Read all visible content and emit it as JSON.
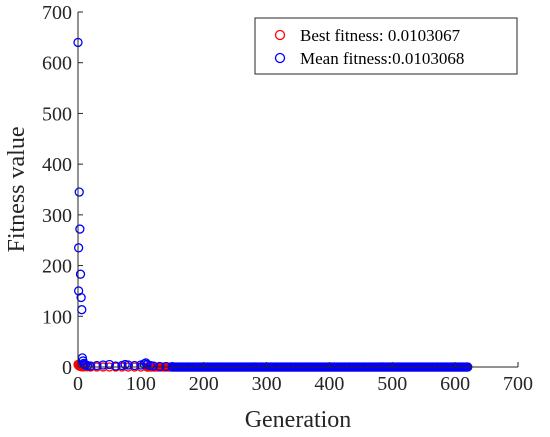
{
  "chart_data": {
    "type": "scatter",
    "xlabel": "Generation",
    "ylabel": "Fitness value",
    "xlim": [
      0,
      700
    ],
    "ylim": [
      0,
      700
    ],
    "xticks": [
      0,
      100,
      200,
      300,
      400,
      500,
      600,
      700
    ],
    "yticks": [
      0,
      100,
      200,
      300,
      400,
      500,
      600,
      700
    ],
    "grid": false,
    "legend_position": "top-right",
    "marker": "open-circle",
    "series": [
      {
        "name": "Best fitness:  0.0103067",
        "color": "#ff0000",
        "points": [
          [
            0,
            5
          ],
          [
            1,
            3
          ],
          [
            2,
            2
          ],
          [
            3,
            1.5
          ],
          [
            4,
            1
          ],
          [
            5,
            0.8
          ],
          [
            6,
            0.6
          ],
          [
            8,
            0.4
          ],
          [
            10,
            0.3
          ],
          [
            15,
            0.2
          ],
          [
            20,
            0.15
          ],
          [
            30,
            0.1
          ],
          [
            40,
            0.08
          ],
          [
            50,
            0.05
          ],
          [
            60,
            0.04
          ],
          [
            70,
            0.03
          ],
          [
            80,
            0.02
          ],
          [
            90,
            0.02
          ],
          [
            100,
            0.015
          ],
          [
            110,
            0.012
          ]
        ],
        "dense_tail": {
          "from": 110,
          "to": 620,
          "step": 2,
          "y": 0.0103067
        }
      },
      {
        "name": "Mean fitness:0.0103068",
        "color": "#0000ff",
        "points": [
          [
            0,
            640
          ],
          [
            1,
            235
          ],
          [
            1,
            150
          ],
          [
            2,
            345
          ],
          [
            3,
            272
          ],
          [
            4,
            183
          ],
          [
            5,
            137
          ],
          [
            6,
            113
          ],
          [
            7,
            18
          ],
          [
            8,
            12
          ],
          [
            9,
            7
          ],
          [
            10,
            5
          ],
          [
            12,
            4
          ],
          [
            15,
            3
          ],
          [
            20,
            2
          ],
          [
            30,
            3
          ],
          [
            40,
            4
          ],
          [
            50,
            5
          ],
          [
            60,
            2
          ],
          [
            70,
            3
          ],
          [
            75,
            5
          ],
          [
            80,
            4
          ],
          [
            90,
            3
          ],
          [
            100,
            4
          ],
          [
            105,
            6
          ],
          [
            108,
            8
          ],
          [
            110,
            5
          ],
          [
            115,
            3
          ],
          [
            120,
            2
          ],
          [
            130,
            1
          ],
          [
            140,
            1
          ],
          [
            150,
            0.8
          ]
        ],
        "dense_tail": {
          "from": 150,
          "to": 620,
          "step": 2,
          "y": 0.0103068
        }
      }
    ]
  }
}
